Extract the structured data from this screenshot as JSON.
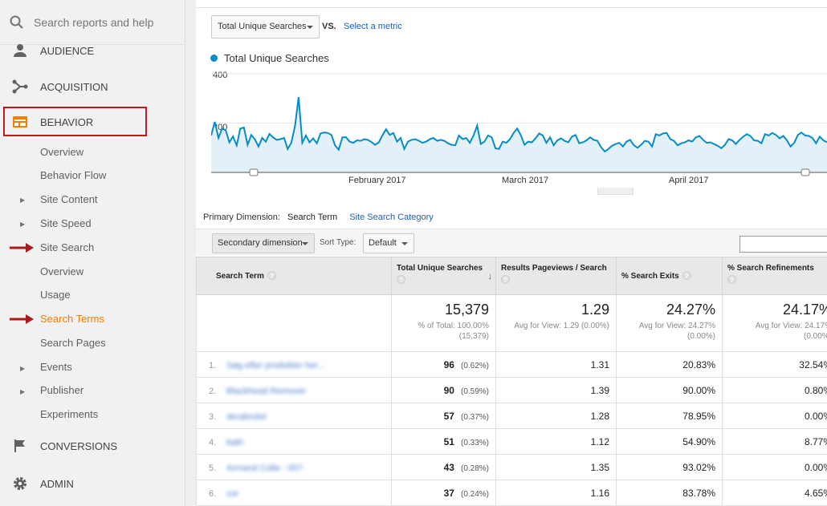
{
  "search": {
    "placeholder": "Search reports and help"
  },
  "nav_top": [
    {
      "label": "AUDIENCE",
      "icon": "person-icon"
    },
    {
      "label": "ACQUISITION",
      "icon": "acquisition-icon"
    },
    {
      "label": "BEHAVIOR",
      "icon": "behavior-icon"
    },
    {
      "label": "CONVERSIONS",
      "icon": "flag-icon"
    },
    {
      "label": "ADMIN",
      "icon": "gear-icon"
    }
  ],
  "behavior_items": [
    "Overview",
    "Behavior Flow",
    "Site Content",
    "Site Speed",
    "Site Search",
    "Overview",
    "Usage",
    "Search Terms",
    "Search Pages",
    "Events",
    "Publisher",
    "Experiments"
  ],
  "metric": {
    "selected": "Total Unique Searches",
    "vs": "VS.",
    "select_link": "Select a metric"
  },
  "chart_data": {
    "type": "line",
    "series": [
      {
        "name": "Total Unique Searches",
        "color": "#058dc7",
        "values": [
          150,
          205,
          140,
          178,
          170,
          122,
          146,
          110,
          178,
          182,
          112,
          152,
          134,
          105,
          140,
          125,
          156,
          142,
          132,
          135,
          140,
          95,
          120,
          188,
          305,
          120,
          150,
          122,
          138,
          118,
          158,
          162,
          160,
          152,
          110,
          92,
          142,
          143,
          125,
          120,
          130,
          128,
          135,
          132,
          123,
          112,
          122,
          150,
          175,
          152,
          160,
          125,
          140,
          95,
          125,
          132,
          135,
          128,
          120,
          125,
          135,
          140,
          128,
          132,
          128,
          118,
          112,
          110,
          150,
          135,
          140,
          120,
          150,
          190,
          115,
          125,
          150,
          142,
          98,
          95,
          125,
          120,
          135,
          160,
          178,
          150,
          112,
          125,
          122,
          138,
          158,
          150,
          120,
          142,
          110,
          130,
          138,
          128,
          122,
          145,
          152,
          118,
          122,
          130,
          142,
          132,
          128,
          102,
          85,
          95,
          108,
          115,
          120,
          105,
          125,
          132,
          110,
          100,
          112,
          128,
          125,
          105,
          155,
          150,
          158,
          160,
          135,
          128,
          110,
          118,
          122,
          130,
          125,
          142,
          148,
          132,
          120,
          122,
          115,
          108,
          98,
          112,
          135,
          130,
          115,
          132,
          145,
          155,
          148,
          130,
          128,
          118,
          155,
          150,
          160,
          152,
          138,
          148,
          130,
          105,
          120,
          152,
          162,
          150,
          148,
          140,
          118,
          145,
          130,
          122
        ]
      }
    ],
    "x_labels": [
      "February 2017",
      "March 2017",
      "April 2017"
    ],
    "y_ticks": [
      "400",
      "200"
    ],
    "ylim": [
      0,
      400
    ],
    "grid": true,
    "fill": "#e3f0f8"
  },
  "primary_dimension": {
    "label": "Primary Dimension:",
    "current": "Search Term",
    "other": "Site Search Category"
  },
  "toolbar": {
    "secondary": "Secondary dimension",
    "sort_label": "Sort Type:",
    "sort_value": "Default"
  },
  "table": {
    "headers": [
      "Search Term",
      "Total Unique Searches",
      "Results Pageviews / Search",
      "% Search Exits",
      "% Search Refinements"
    ],
    "totals": [
      {
        "big": "15,379",
        "small1": "% of Total: 100.00%",
        "small2": "(15,379)"
      },
      {
        "big": "1.29",
        "small1": "Avg for View: 1.29 (0.00%)",
        "small2": ""
      },
      {
        "big": "24.27%",
        "small1": "Avg for View: 24.27%",
        "small2": "(0.00%)"
      },
      {
        "big": "24.17%",
        "small1": "Avg for View: 24.17%",
        "small2": "(0.00%)"
      }
    ],
    "rows": [
      {
        "idx": "1.",
        "term": "Søg efter produkter her...",
        "searches": "96",
        "pct": "(0.62%)",
        "rps": "1.31",
        "exits": "20.83%",
        "refine": "32.54%"
      },
      {
        "idx": "2.",
        "term": "Blackhead Remover",
        "searches": "90",
        "pct": "(0.59%)",
        "rps": "1.39",
        "exits": "90.00%",
        "refine": "0.80%"
      },
      {
        "idx": "3.",
        "term": "derabrolet",
        "searches": "57",
        "pct": "(0.37%)",
        "rps": "1.28",
        "exits": "78.95%",
        "refine": "0.00%"
      },
      {
        "idx": "4.",
        "term": "bath",
        "searches": "51",
        "pct": "(0.33%)",
        "rps": "1.12",
        "exits": "54.90%",
        "refine": "8.77%"
      },
      {
        "idx": "5.",
        "term": "Armand Colle - 007",
        "searches": "43",
        "pct": "(0.28%)",
        "rps": "1.35",
        "exits": "93.02%",
        "refine": "0.00%"
      },
      {
        "idx": "6.",
        "term": "cor",
        "searches": "37",
        "pct": "(0.24%)",
        "rps": "1.16",
        "exits": "83.78%",
        "refine": "4.65%"
      }
    ]
  }
}
